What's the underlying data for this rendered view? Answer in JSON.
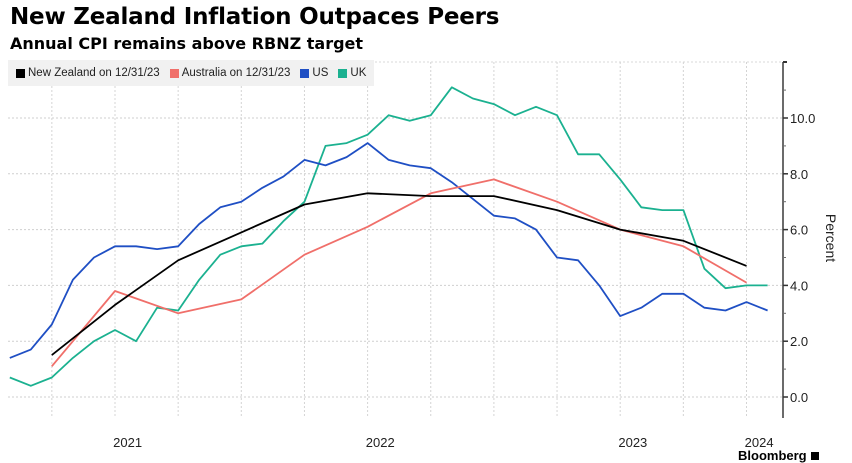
{
  "header": {
    "title": "New Zealand Inflation Outpaces Peers",
    "subtitle": "Annual CPI remains above RBNZ target"
  },
  "legend": [
    {
      "label": "New Zealand on 12/31/23",
      "color": "#000000",
      "icon": "square-icon"
    },
    {
      "label": "Australia on 12/31/23",
      "color": "#f06f6a",
      "icon": "square-icon"
    },
    {
      "label": "US",
      "color": "#1f4fc4",
      "icon": "square-icon"
    },
    {
      "label": "UK",
      "color": "#1bb190",
      "icon": "square-icon"
    }
  ],
  "footer": {
    "source_brand": "Bloomberg"
  },
  "chart_data": {
    "type": "line",
    "title": "New Zealand Inflation Outpaces Peers",
    "subtitle": "Annual CPI remains above RBNZ target",
    "xlabel": "",
    "ylabel": "Percent",
    "y_axis_side": "right",
    "ylim": [
      -1.0,
      12.0
    ],
    "yticks": [
      0.0,
      2.0,
      4.0,
      6.0,
      8.0,
      10.0
    ],
    "ytick_labels": [
      "0.0",
      "2.0",
      "4.0",
      "6.0",
      "8.0",
      "10.0"
    ],
    "x_unit": "months since Jan 2021",
    "xlim": [
      -5.4,
      31.6
    ],
    "xtick_labels": [
      {
        "label": "2021",
        "x": 0.6
      },
      {
        "label": "2022",
        "x": 12.6
      },
      {
        "label": "2023",
        "x": 24.6
      },
      {
        "label": "2024",
        "x": 30.6
      }
    ],
    "grid": true,
    "legend_position": "top-left",
    "series": [
      {
        "name": "New Zealand on 12/31/23",
        "color": "#000000",
        "x": [
          -3,
          0,
          3,
          6,
          9,
          12,
          15,
          18,
          21,
          24,
          27,
          30
        ],
        "values": [
          1.5,
          3.3,
          4.9,
          5.9,
          6.9,
          7.3,
          7.2,
          7.2,
          6.7,
          6.0,
          5.6,
          4.7
        ]
      },
      {
        "name": "Australia on 12/31/23",
        "color": "#f06f6a",
        "x": [
          -3,
          0,
          3,
          6,
          9,
          12,
          15,
          18,
          21,
          24,
          27,
          30
        ],
        "values": [
          1.1,
          3.8,
          3.0,
          3.5,
          5.1,
          6.1,
          7.3,
          7.8,
          7.0,
          6.0,
          5.4,
          4.1
        ]
      },
      {
        "name": "US",
        "color": "#1f4fc4",
        "x": [
          -5,
          -4,
          -3,
          -2,
          -1,
          0,
          1,
          2,
          3,
          4,
          5,
          6,
          7,
          8,
          9,
          10,
          11,
          12,
          13,
          14,
          15,
          16,
          17,
          18,
          19,
          20,
          21,
          22,
          23,
          24,
          25,
          26,
          27,
          28,
          29,
          30,
          31
        ],
        "values": [
          1.4,
          1.7,
          2.6,
          4.2,
          5.0,
          5.4,
          5.4,
          5.3,
          5.4,
          6.2,
          6.8,
          7.0,
          7.5,
          7.9,
          8.5,
          8.3,
          8.6,
          9.1,
          8.5,
          8.3,
          8.2,
          7.7,
          7.1,
          6.5,
          6.4,
          6.0,
          5.0,
          4.9,
          4.0,
          2.9,
          3.2,
          3.7,
          3.7,
          3.2,
          3.1,
          3.4,
          3.1
        ]
      },
      {
        "name": "UK",
        "color": "#1bb190",
        "x": [
          -5,
          -4,
          -3,
          -2,
          -1,
          0,
          1,
          2,
          3,
          4,
          5,
          6,
          7,
          8,
          9,
          10,
          11,
          12,
          13,
          14,
          15,
          16,
          17,
          18,
          19,
          20,
          21,
          22,
          23,
          24,
          25,
          26,
          27,
          28,
          29,
          30,
          31
        ],
        "values": [
          0.7,
          0.4,
          0.7,
          1.4,
          2.0,
          2.4,
          2.0,
          3.2,
          3.1,
          4.2,
          5.1,
          5.4,
          5.5,
          6.3,
          7.0,
          9.0,
          9.1,
          9.4,
          10.1,
          9.9,
          10.1,
          11.1,
          10.7,
          10.5,
          10.1,
          10.4,
          10.1,
          8.7,
          8.7,
          7.8,
          6.8,
          6.7,
          6.7,
          4.6,
          3.9,
          4.0,
          4.0
        ]
      }
    ]
  }
}
